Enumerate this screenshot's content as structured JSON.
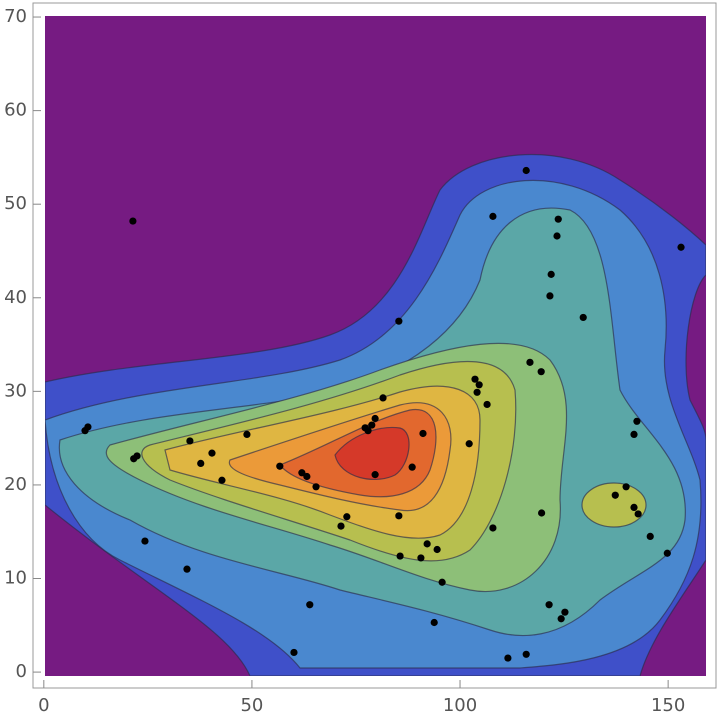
{
  "chart_data": {
    "type": "scatter",
    "xlim": [
      -2.6,
      161.5
    ],
    "ylim": [
      -1.7,
      71.5
    ],
    "xticks": [
      0,
      50,
      100,
      150
    ],
    "yticks": [
      0,
      10,
      20,
      30,
      40,
      50,
      60,
      70
    ],
    "series": [
      {
        "color": "#000000",
        "x": [
          21.4,
          115.9,
          107.9,
          123.6,
          123.3,
          153.1,
          121.9,
          121.6,
          85.3,
          129.6,
          116.8,
          119.5,
          103.6,
          104.6,
          104.1,
          81.5,
          106.5,
          142.5,
          141.8,
          9.9,
          10.6,
          79.6,
          78.8,
          77.2,
          77.9,
          48.8,
          35.1,
          91.1,
          102.2,
          22.4,
          21.6,
          40.4,
          37.7,
          56.7,
          62.0,
          63.2,
          79.6,
          88.5,
          42.8,
          65.4,
          139.9,
          137.3,
          141.8,
          142.8,
          119.6,
          85.3,
          72.8,
          71.4,
          107.9,
          145.7,
          24.3,
          92.1,
          94.5,
          85.6,
          90.6,
          149.8,
          34.4,
          95.7,
          121.4,
          63.9,
          125.2,
          124.3,
          93.8,
          60.1,
          111.5,
          115.9
        ],
        "y": [
          48.2,
          53.6,
          48.7,
          48.4,
          46.6,
          45.4,
          42.5,
          40.2,
          37.5,
          37.9,
          33.1,
          32.1,
          31.3,
          30.7,
          29.9,
          29.3,
          28.6,
          26.8,
          25.4,
          25.8,
          26.2,
          27.1,
          26.4,
          26.1,
          25.8,
          25.4,
          24.7,
          25.5,
          24.4,
          23.1,
          22.8,
          23.4,
          22.3,
          22.0,
          21.3,
          20.9,
          21.1,
          21.9,
          20.5,
          19.8,
          19.8,
          18.9,
          17.6,
          16.9,
          17.0,
          16.7,
          16.6,
          15.6,
          15.4,
          14.5,
          14.0,
          13.7,
          13.1,
          12.4,
          12.2,
          12.7,
          11.0,
          9.6,
          7.2,
          7.2,
          6.4,
          5.7,
          5.3,
          2.1,
          1.5,
          1.9
        ]
      }
    ]
  }
}
